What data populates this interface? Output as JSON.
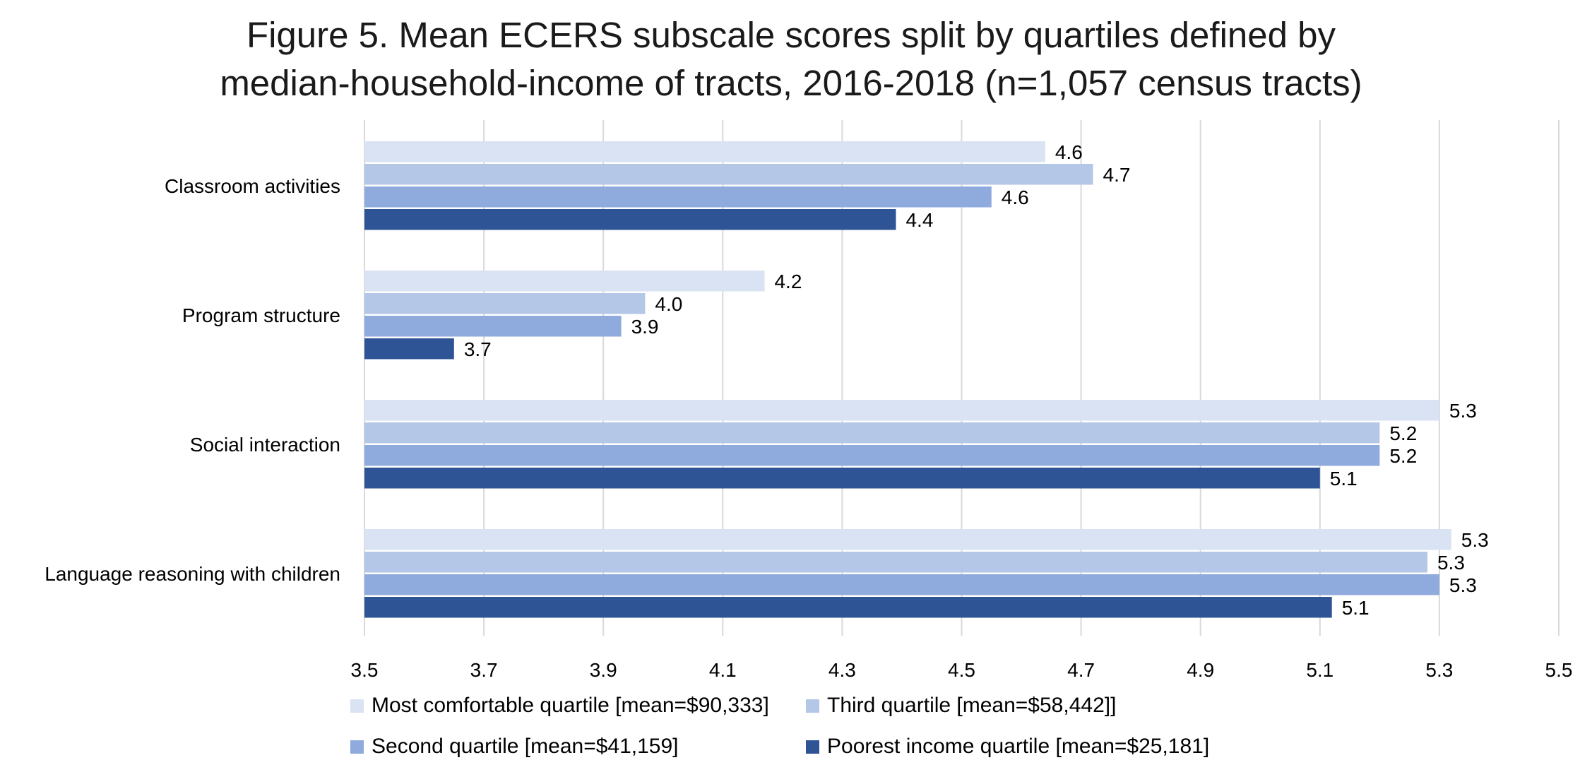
{
  "chart_data": {
    "type": "bar",
    "orientation": "horizontal",
    "title": "Figure 5. Mean ECERS subscale scores split by quartiles defined by median-household-income of tracts, 2016-2018 (n=1,057 census tracts)",
    "categories": [
      "Classroom activities",
      "Program structure",
      "Social interaction",
      "Language reasoning with children"
    ],
    "series": [
      {
        "name": "Most comfortable quartile [mean=$90,333]",
        "color": "#dae3f3",
        "values": [
          4.64,
          4.17,
          5.3,
          5.32
        ],
        "labels": [
          "4.6",
          "4.2",
          "5.3",
          "5.3"
        ]
      },
      {
        "name": "Third quartile [mean=$58,442]]",
        "color": "#b4c7e7",
        "values": [
          4.72,
          3.97,
          5.2,
          5.28
        ],
        "labels": [
          "4.7",
          "4.0",
          "5.2",
          "5.3"
        ]
      },
      {
        "name": "Second quartile [mean=$41,159]",
        "color": "#8faadc",
        "values": [
          4.55,
          3.93,
          5.2,
          5.3
        ],
        "labels": [
          "4.6",
          "3.9",
          "5.2",
          "5.3"
        ]
      },
      {
        "name": "Poorest income quartile [mean=$25,181]",
        "color": "#2f5496",
        "values": [
          4.39,
          3.65,
          5.1,
          5.12
        ],
        "labels": [
          "4.4",
          "3.7",
          "5.1",
          "5.1"
        ]
      }
    ],
    "xlim": [
      3.5,
      5.5
    ],
    "xticks": [
      "3.5",
      "3.7",
      "3.9",
      "4.1",
      "4.3",
      "4.5",
      "4.7",
      "4.9",
      "5.1",
      "5.3",
      "5.5"
    ],
    "xlabel": "",
    "ylabel": "",
    "grid": "vertical",
    "legend_position": "bottom",
    "gridline_color": "#d9d9d9"
  }
}
